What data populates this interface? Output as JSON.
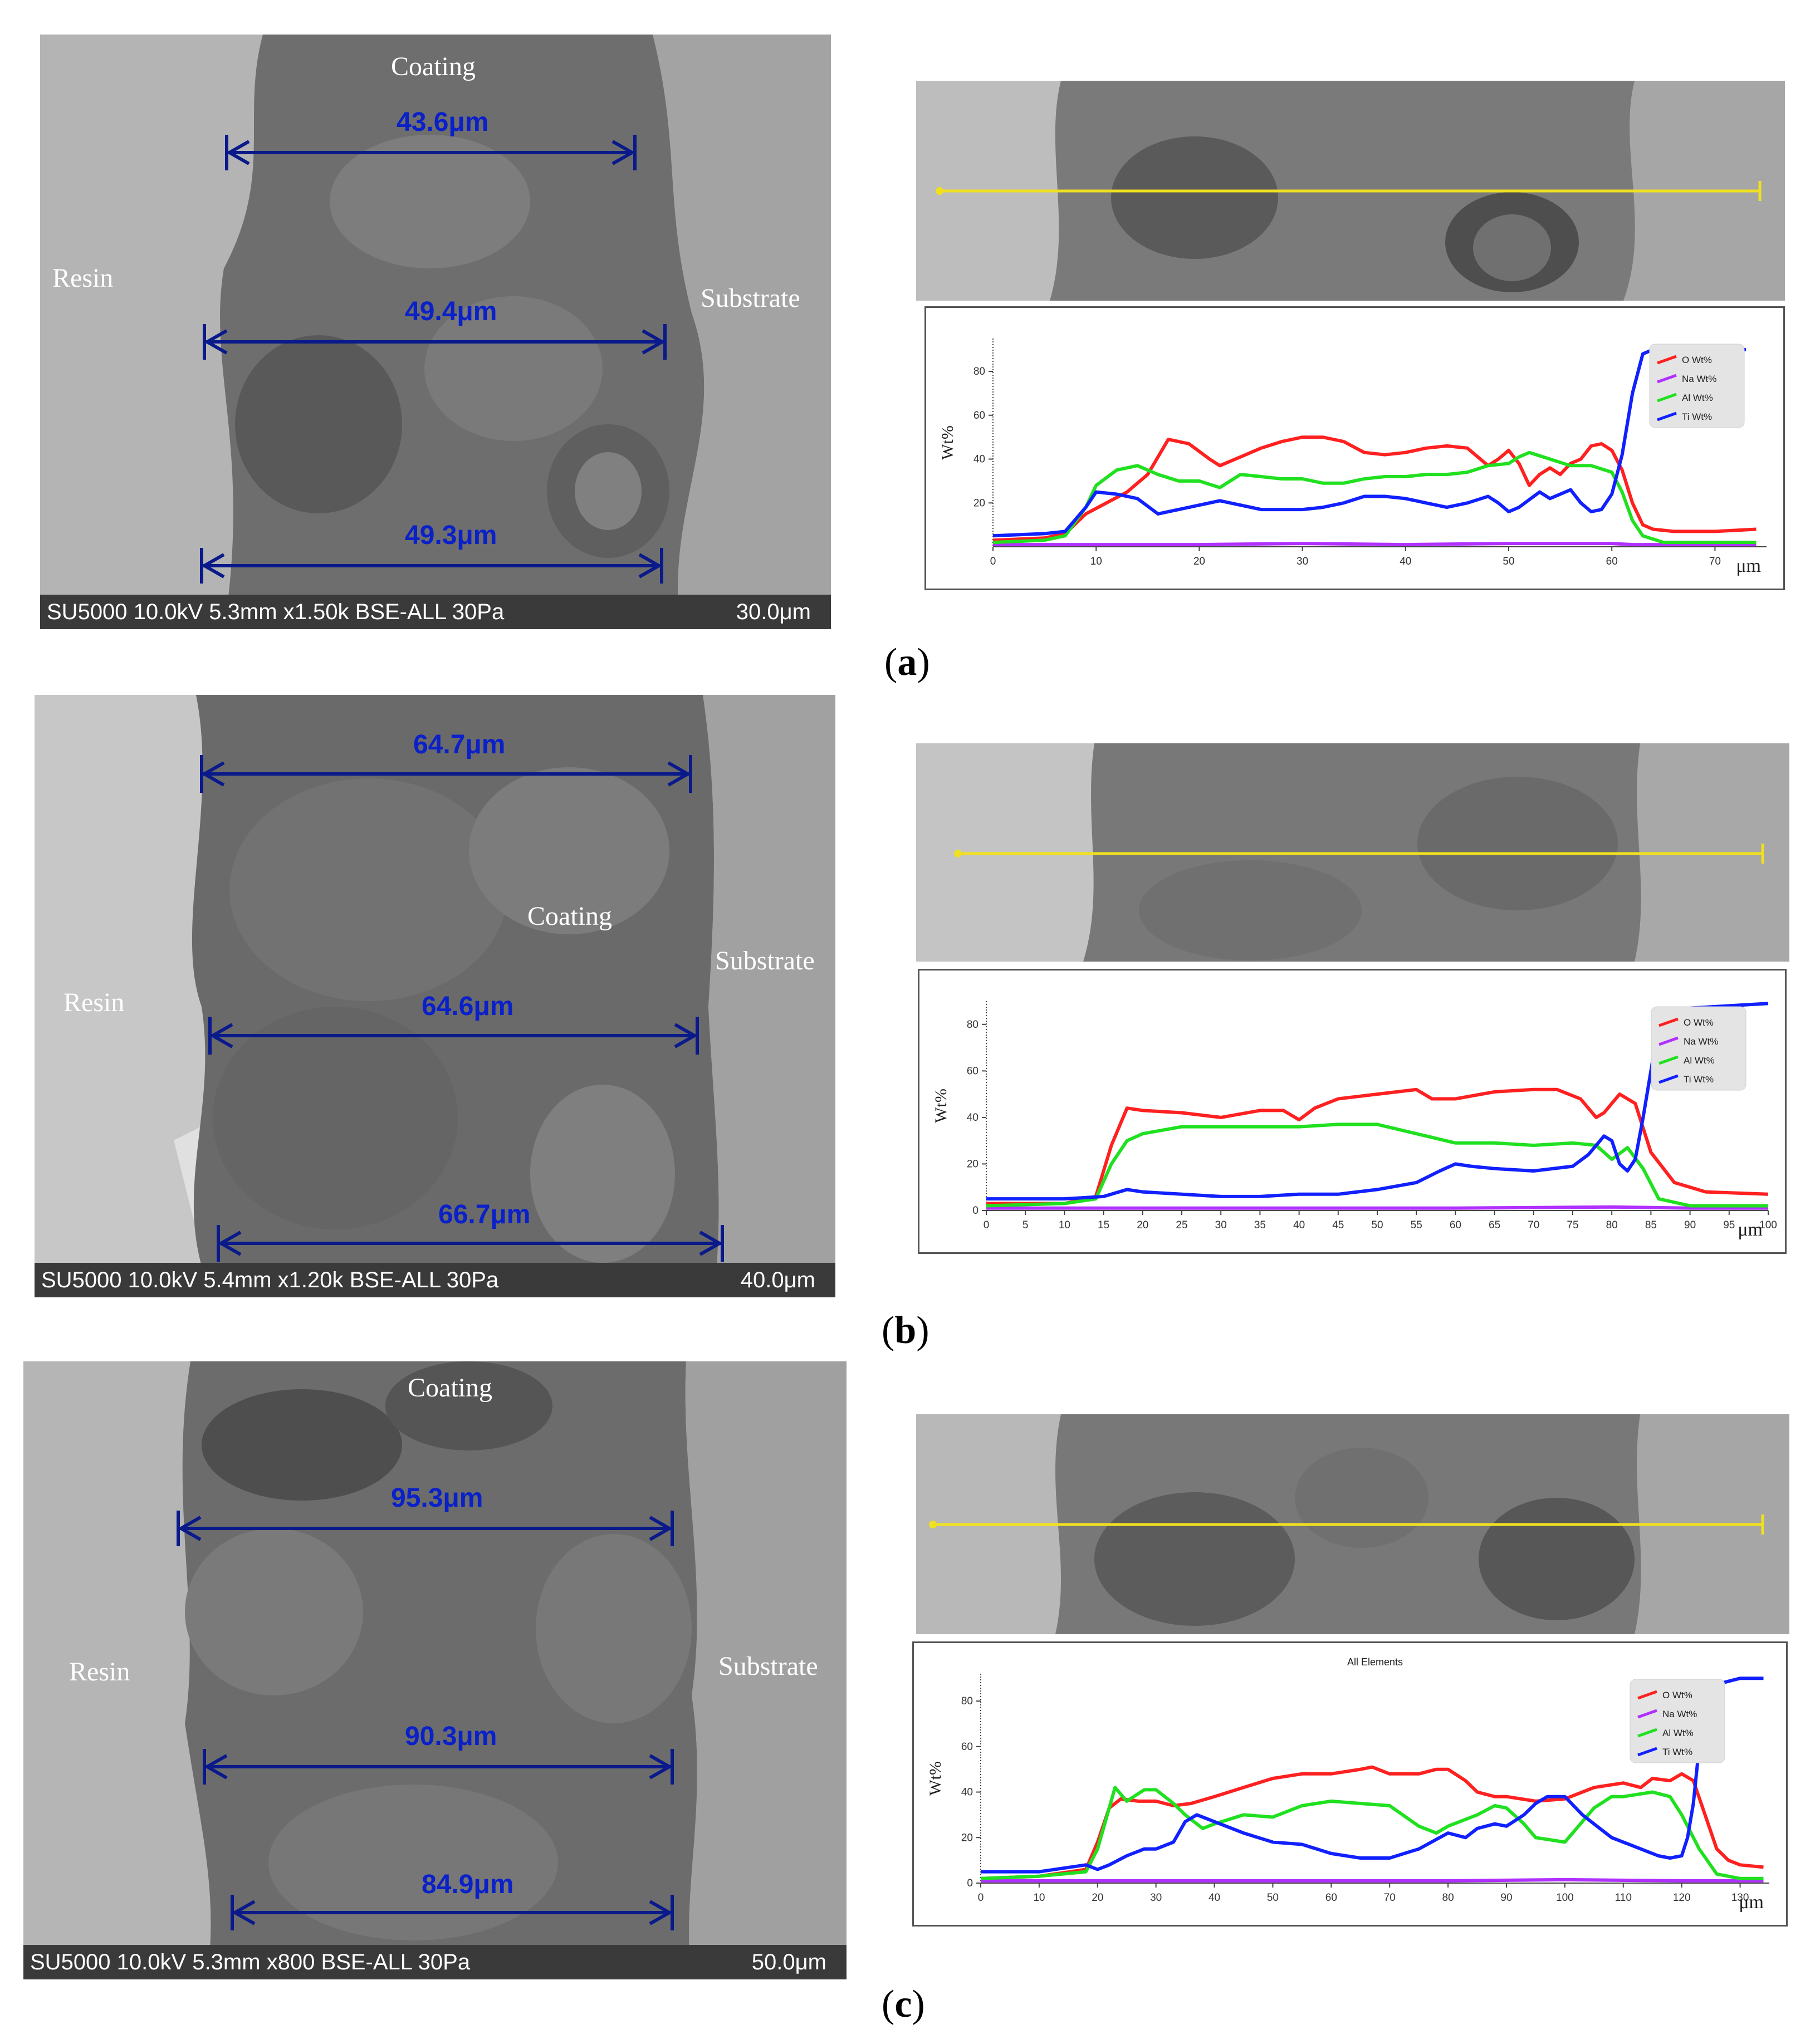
{
  "panels": [
    {
      "id": "a",
      "label_open": "(",
      "label_letter": "a",
      "label_close": ")",
      "sem": {
        "labels": {
          "coating": "Coating",
          "resin": "Resin",
          "substrate": "Substrate"
        },
        "measurements": [
          "43.6μm",
          "49.4μm",
          "49.3μm"
        ],
        "info": "SU5000 10.0kV 5.3mm x1.50k BSE-ALL 30Pa",
        "scale": "30.0μm"
      },
      "chart_data": {
        "type": "line",
        "title": "",
        "xlabel": "μm",
        "ylabel": "Wt%",
        "xlim": [
          0,
          75
        ],
        "ylim": [
          0,
          95
        ],
        "xticks": [
          "0",
          "10",
          "20",
          "30",
          "40",
          "50",
          "60",
          "70"
        ],
        "yticks": [
          "20",
          "40",
          "60",
          "80"
        ],
        "legend": [
          "O Wt%",
          "Na Wt%",
          "Al Wt%",
          "Ti Wt%"
        ],
        "colors": [
          "#ff2020",
          "#b030ff",
          "#20e020",
          "#1020ff"
        ],
        "series": [
          {
            "name": "O Wt%",
            "x": [
              0,
              5,
              7,
              9,
              11,
              13,
              15,
              17,
              19,
              21,
              22,
              24,
              26,
              28,
              30,
              32,
              34,
              36,
              38,
              40,
              42,
              44,
              46,
              48,
              49,
              50,
              51,
              52,
              53,
              54,
              55,
              56,
              57,
              58,
              59,
              60,
              61,
              62,
              63,
              64,
              66,
              70,
              74
            ],
            "y": [
              3,
              4,
              6,
              15,
              20,
              25,
              33,
              49,
              47,
              40,
              37,
              41,
              45,
              48,
              50,
              50,
              48,
              43,
              42,
              43,
              45,
              46,
              45,
              37,
              40,
              44,
              38,
              28,
              33,
              36,
              33,
              38,
              40,
              46,
              47,
              44,
              35,
              20,
              10,
              8,
              7,
              7,
              8
            ]
          },
          {
            "name": "Na Wt%",
            "x": [
              0,
              10,
              20,
              30,
              40,
              50,
              60,
              62,
              70,
              74
            ],
            "y": [
              1,
              1,
              1,
              1.5,
              1,
              1.5,
              1.5,
              1,
              1,
              1
            ]
          },
          {
            "name": "Al Wt%",
            "x": [
              0,
              5,
              7,
              9,
              10,
              12,
              14,
              16,
              18,
              20,
              22,
              24,
              26,
              28,
              30,
              32,
              34,
              36,
              38,
              40,
              42,
              44,
              46,
              48,
              50,
              51,
              52,
              54,
              56,
              58,
              60,
              61,
              62,
              63,
              65,
              70,
              74
            ],
            "y": [
              2,
              3,
              5,
              18,
              28,
              35,
              37,
              33,
              30,
              30,
              27,
              33,
              32,
              31,
              31,
              29,
              29,
              31,
              32,
              32,
              33,
              33,
              34,
              37,
              38,
              41,
              43,
              40,
              37,
              37,
              34,
              25,
              12,
              5,
              2,
              2,
              2
            ]
          },
          {
            "name": "Ti Wt%",
            "x": [
              0,
              5,
              7,
              9,
              10,
              12,
              14,
              16,
              18,
              20,
              22,
              24,
              26,
              28,
              30,
              32,
              34,
              36,
              38,
              40,
              42,
              44,
              46,
              48,
              49,
              50,
              51,
              53,
              54,
              55,
              56,
              57,
              58,
              59,
              60,
              61,
              62,
              63,
              64,
              66,
              68,
              70,
              73
            ],
            "y": [
              5,
              6,
              7,
              18,
              25,
              24,
              22,
              15,
              17,
              19,
              21,
              19,
              17,
              17,
              17,
              18,
              20,
              23,
              23,
              22,
              20,
              18,
              20,
              23,
              20,
              16,
              18,
              25,
              22,
              24,
              26,
              20,
              16,
              17,
              24,
              42,
              70,
              88,
              90,
              90,
              90,
              89,
              90
            ]
          }
        ]
      }
    },
    {
      "id": "b",
      "label_open": "(",
      "label_letter": "b",
      "label_close": ")",
      "sem": {
        "labels": {
          "coating": "Coating",
          "resin": "Resin",
          "substrate": "Substrate"
        },
        "measurements": [
          "64.7μm",
          "64.6μm",
          "66.7μm"
        ],
        "info": "SU5000 10.0kV 5.4mm x1.20k BSE-ALL 30Pa",
        "scale": "40.0μm"
      },
      "chart_data": {
        "type": "line",
        "title": "",
        "xlabel": "μm",
        "ylabel": "Wt%",
        "xlim": [
          0,
          100
        ],
        "ylim": [
          0,
          90
        ],
        "xticks": [
          "0",
          "5",
          "10",
          "15",
          "20",
          "25",
          "30",
          "35",
          "40",
          "45",
          "50",
          "55",
          "60",
          "65",
          "70",
          "75",
          "80",
          "85",
          "90",
          "95",
          "100"
        ],
        "yticks": [
          "0",
          "20",
          "40",
          "60",
          "80"
        ],
        "legend": [
          "O Wt%",
          "Na Wt%",
          "Al Wt%",
          "Ti Wt%"
        ],
        "colors": [
          "#ff2020",
          "#b030ff",
          "#20e020",
          "#1020ff"
        ],
        "series": [
          {
            "name": "O Wt%",
            "x": [
              0,
              10,
              14,
              16,
              18,
              20,
              25,
              30,
              35,
              38,
              40,
              42,
              45,
              50,
              55,
              57,
              60,
              65,
              70,
              73,
              76,
              78,
              79,
              81,
              83,
              85,
              88,
              92,
              100
            ],
            "y": [
              3,
              3,
              6,
              28,
              44,
              43,
              42,
              40,
              43,
              43,
              39,
              44,
              48,
              50,
              52,
              48,
              48,
              51,
              52,
              52,
              48,
              40,
              42,
              50,
              46,
              25,
              12,
              8,
              7
            ]
          },
          {
            "name": "Na Wt%",
            "x": [
              0,
              20,
              40,
              60,
              80,
              90,
              100
            ],
            "y": [
              1,
              1,
              1,
              1,
              1.5,
              1,
              1
            ]
          },
          {
            "name": "Al Wt%",
            "x": [
              0,
              10,
              14,
              16,
              18,
              20,
              25,
              30,
              35,
              40,
              45,
              50,
              55,
              60,
              65,
              70,
              75,
              78,
              80,
              82,
              84,
              86,
              90,
              100
            ],
            "y": [
              2,
              3,
              5,
              20,
              30,
              33,
              36,
              36,
              36,
              36,
              37,
              37,
              33,
              29,
              29,
              28,
              29,
              28,
              22,
              27,
              18,
              5,
              2,
              2
            ]
          },
          {
            "name": "Ti Wt%",
            "x": [
              0,
              10,
              15,
              18,
              20,
              25,
              30,
              35,
              40,
              45,
              50,
              55,
              58,
              60,
              62,
              65,
              70,
              75,
              77,
              79,
              80,
              81,
              82,
              83,
              84,
              85,
              86,
              88,
              90,
              95,
              100
            ],
            "y": [
              5,
              5,
              6,
              9,
              8,
              7,
              6,
              6,
              7,
              7,
              9,
              12,
              17,
              20,
              19,
              18,
              17,
              19,
              24,
              32,
              30,
              20,
              17,
              22,
              40,
              60,
              80,
              86,
              87,
              88,
              89
            ]
          }
        ]
      }
    },
    {
      "id": "c",
      "label_open": "(",
      "label_letter": "c",
      "label_close": ")",
      "sem": {
        "labels": {
          "coating": "Coating",
          "resin": "Resin",
          "substrate": "Substrate"
        },
        "measurements": [
          "95.3μm",
          "90.3μm",
          "84.9μm"
        ],
        "info": "SU5000 10.0kV 5.3mm x800 BSE-ALL 30Pa",
        "scale": "50.0μm"
      },
      "chart_data": {
        "type": "line",
        "title": "All Elements",
        "xlabel": "μm",
        "ylabel": "Wt%",
        "xlim": [
          0,
          135
        ],
        "ylim": [
          0,
          92
        ],
        "xticks": [
          "0",
          "10",
          "20",
          "30",
          "40",
          "50",
          "60",
          "70",
          "80",
          "90",
          "100",
          "110",
          "120",
          "130"
        ],
        "yticks": [
          "0",
          "20",
          "40",
          "60",
          "80"
        ],
        "legend": [
          "O Wt%",
          "Na Wt%",
          "Al Wt%",
          "Ti Wt%"
        ],
        "colors": [
          "#ff2020",
          "#b030ff",
          "#20e020",
          "#1020ff"
        ],
        "series": [
          {
            "name": "O Wt%",
            "x": [
              0,
              10,
              18,
              20,
              22,
              24,
              27,
              30,
              33,
              36,
              40,
              45,
              50,
              55,
              60,
              65,
              67,
              70,
              75,
              78,
              80,
              83,
              85,
              88,
              90,
              95,
              100,
              105,
              110,
              113,
              115,
              118,
              120,
              122,
              124,
              126,
              128,
              130,
              134
            ],
            "y": [
              2,
              3,
              6,
              18,
              33,
              37,
              36,
              36,
              34,
              35,
              38,
              42,
              46,
              48,
              48,
              50,
              51,
              48,
              48,
              50,
              50,
              45,
              40,
              38,
              38,
              36,
              37,
              42,
              44,
              42,
              46,
              45,
              48,
              45,
              30,
              15,
              10,
              8,
              7
            ]
          },
          {
            "name": "Na Wt%",
            "x": [
              0,
              20,
              40,
              60,
              80,
              100,
              120,
              134
            ],
            "y": [
              1,
              1,
              1,
              1,
              1,
              1.5,
              1,
              1
            ]
          },
          {
            "name": "Al Wt%",
            "x": [
              0,
              10,
              18,
              20,
              23,
              25,
              28,
              30,
              33,
              35,
              38,
              40,
              45,
              50,
              55,
              60,
              65,
              70,
              75,
              78,
              80,
              85,
              88,
              90,
              93,
              95,
              100,
              105,
              108,
              110,
              115,
              118,
              120,
              123,
              126,
              130,
              134
            ],
            "y": [
              2,
              3,
              5,
              15,
              42,
              36,
              41,
              41,
              35,
              30,
              24,
              26,
              30,
              29,
              34,
              36,
              35,
              34,
              25,
              22,
              25,
              30,
              34,
              33,
              26,
              20,
              18,
              33,
              38,
              38,
              40,
              38,
              30,
              15,
              4,
              2,
              2
            ]
          },
          {
            "name": "Ti Wt%",
            "x": [
              0,
              10,
              18,
              20,
              22,
              25,
              28,
              30,
              33,
              35,
              37,
              40,
              45,
              50,
              55,
              60,
              65,
              70,
              75,
              80,
              83,
              85,
              88,
              90,
              93,
              95,
              97,
              100,
              103,
              105,
              108,
              110,
              113,
              116,
              118,
              120,
              121,
              122,
              123,
              125,
              127,
              130,
              134
            ],
            "y": [
              5,
              5,
              8,
              6,
              8,
              12,
              15,
              15,
              18,
              27,
              30,
              27,
              22,
              18,
              17,
              13,
              11,
              11,
              15,
              22,
              20,
              24,
              26,
              25,
              30,
              35,
              38,
              38,
              30,
              26,
              20,
              18,
              15,
              12,
              11,
              12,
              20,
              35,
              60,
              80,
              88,
              90,
              90
            ]
          }
        ]
      }
    }
  ]
}
